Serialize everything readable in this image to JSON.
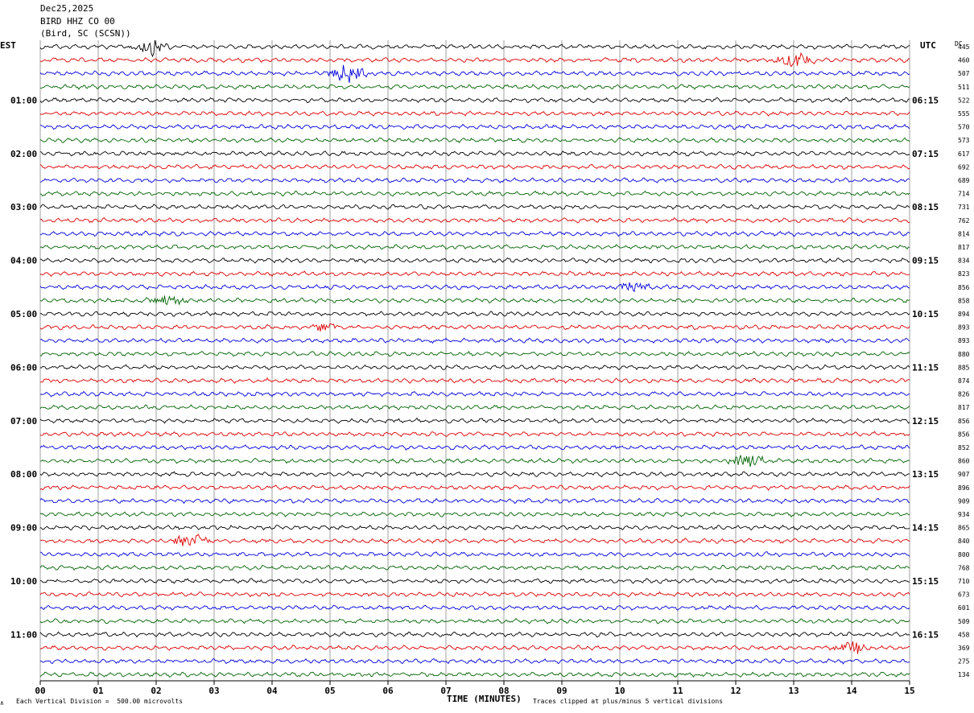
{
  "header": {
    "date": "Dec25,2025",
    "station": "BIRD HHZ CO 00",
    "location": "(Bird, SC (SCSN))"
  },
  "labels": {
    "left_tz": "EST",
    "right_tz": "UTC",
    "dc": "DC"
  },
  "footer": {
    "scale_note": "Each Vertical Division =  500.00 microvolts",
    "clip_note": "Traces clipped at plus/minus 5 vertical divisions",
    "corner_mark": "∧"
  },
  "colors": [
    "#000000",
    "#dd0000",
    "#0000dd",
    "#006400"
  ],
  "chart_data": {
    "type": "line",
    "title": "BIRD HHZ CO 00",
    "xlabel": "TIME (MINUTES)",
    "xlim": [
      0,
      15
    ],
    "x_ticks": [
      "00",
      "01",
      "02",
      "03",
      "04",
      "05",
      "06",
      "07",
      "08",
      "09",
      "10",
      "11",
      "12",
      "13",
      "14",
      "15"
    ],
    "grid": true,
    "row_count": 48,
    "left_hour_labels": [
      "01:00",
      "02:00",
      "03:00",
      "04:00",
      "05:00",
      "06:00",
      "07:00",
      "08:00",
      "09:00",
      "10:00",
      "11:00"
    ],
    "right_hour_labels": [
      "06:15",
      "07:15",
      "08:15",
      "09:15",
      "10:15",
      "11:15",
      "12:15",
      "13:15",
      "14:15",
      "15:15",
      "16:15"
    ],
    "dc_offsets": [
      445,
      460,
      507,
      511,
      522,
      555,
      570,
      573,
      617,
      692,
      689,
      714,
      731,
      762,
      814,
      817,
      834,
      823,
      856,
      858,
      894,
      893,
      893,
      880,
      885,
      874,
      826,
      817,
      856,
      856,
      852,
      860,
      907,
      896,
      909,
      934,
      865,
      840,
      800,
      768,
      710,
      673,
      601,
      509,
      458,
      369,
      275,
      134
    ],
    "events": [
      {
        "row": 0,
        "minute": 1.9,
        "amp": 10
      },
      {
        "row": 1,
        "minute": 13.0,
        "amp": 10
      },
      {
        "row": 2,
        "minute": 5.3,
        "amp": 12
      },
      {
        "row": 18,
        "minute": 10.2,
        "amp": 6
      },
      {
        "row": 19,
        "minute": 2.2,
        "amp": 7
      },
      {
        "row": 21,
        "minute": 4.9,
        "amp": 5
      },
      {
        "row": 31,
        "minute": 12.2,
        "amp": 9
      },
      {
        "row": 37,
        "minute": 2.6,
        "amp": 9
      },
      {
        "row": 45,
        "minute": 14.0,
        "amp": 8
      }
    ]
  }
}
